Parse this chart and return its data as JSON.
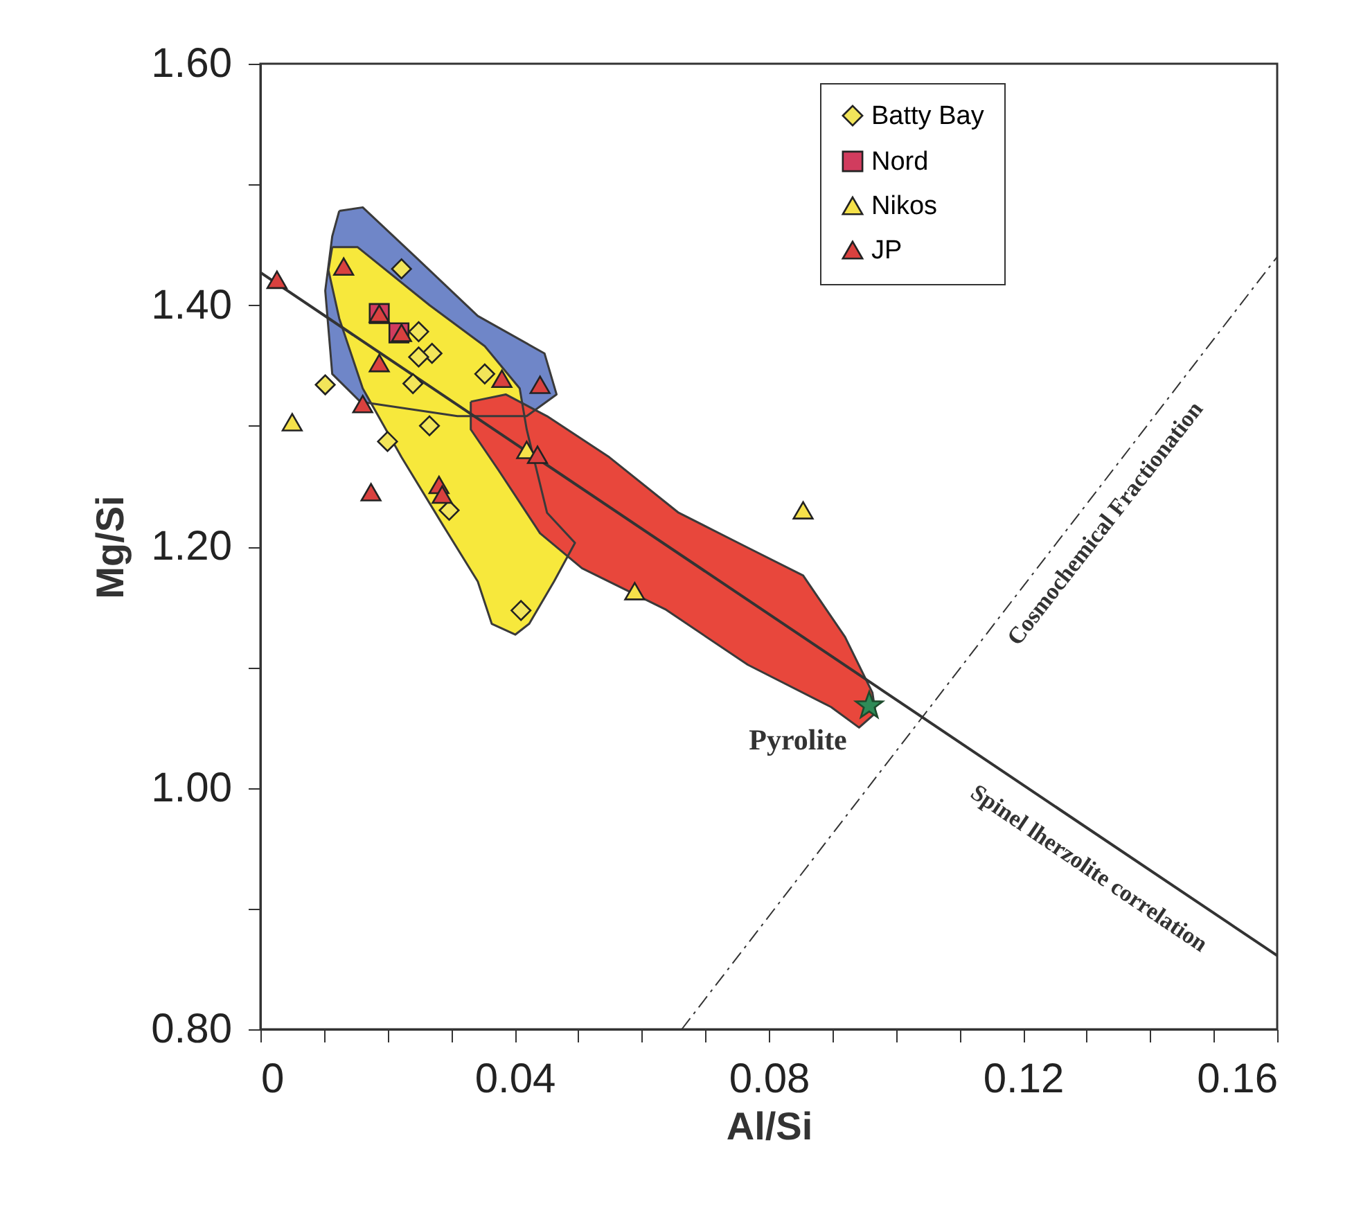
{
  "chart_data": {
    "type": "scatter",
    "xlabel": "Al/Si",
    "ylabel": "Mg/Si",
    "xlim": [
      0,
      0.16
    ],
    "ylim": [
      0.8,
      1.6
    ],
    "xticks": [
      0,
      {
        "value": 0.01,
        "label": null
      },
      {
        "value": 0.02,
        "label": null
      },
      {
        "value": 0.03,
        "label": null
      },
      0.04,
      {
        "value": 0.05,
        "label": null
      },
      {
        "value": 0.06,
        "label": null
      },
      {
        "value": 0.07,
        "label": null
      },
      0.08,
      {
        "value": 0.09,
        "label": null
      },
      {
        "value": 0.1,
        "label": null
      },
      {
        "value": 0.11,
        "label": null
      },
      0.12,
      {
        "value": 0.13,
        "label": null
      },
      {
        "value": 0.14,
        "label": null
      },
      {
        "value": 0.15,
        "label": null
      },
      0.16
    ],
    "yticks": [
      {
        "value": 0.8,
        "label": "0.80"
      },
      {
        "value": 0.9,
        "label": null
      },
      {
        "value": 1.0,
        "label": "1.00"
      },
      {
        "value": 1.1,
        "label": null
      },
      {
        "value": 1.2,
        "label": "1.20"
      },
      {
        "value": 1.3,
        "label": null
      },
      {
        "value": 1.4,
        "label": "1.40"
      },
      {
        "value": 1.5,
        "label": null
      },
      {
        "value": 1.6,
        "label": "1.60"
      }
    ],
    "grid": false,
    "legend": "top right",
    "series": [
      {
        "type": "area",
        "color": "#6f86c8",
        "x": [
          0.0124,
          0.0161,
          0.0244,
          0.0342,
          0.0447,
          0.0466,
          0.0419,
          0.031,
          0.0157,
          0.0113,
          0.0102,
          0.0113
        ],
        "values": [
          1.478,
          1.481,
          1.44,
          1.391,
          1.36,
          1.326,
          1.308,
          1.308,
          1.32,
          1.343,
          1.412,
          1.457
        ]
      },
      {
        "type": "area",
        "color": "#f7e83c",
        "x": [
          0.0113,
          0.0153,
          0.0266,
          0.0353,
          0.0408,
          0.0419,
          0.0451,
          0.0495,
          0.0462,
          0.0423,
          0.0401,
          0.0364,
          0.0342,
          0.0288,
          0.0222,
          0.0161,
          0.0124,
          0.0107
        ],
        "values": [
          1.448,
          1.448,
          1.4,
          1.366,
          1.331,
          1.297,
          1.228,
          1.203,
          1.171,
          1.136,
          1.127,
          1.136,
          1.171,
          1.217,
          1.274,
          1.331,
          1.389,
          1.429
        ]
      },
      {
        "type": "area",
        "color": "#e8473c",
        "x": [
          0.0331,
          0.0386,
          0.0451,
          0.0549,
          0.0658,
          0.0767,
          0.0854,
          0.092,
          0.0963,
          0.0968,
          0.0942,
          0.0898,
          0.0767,
          0.0637,
          0.0506,
          0.044,
          0.0375,
          0.0331
        ],
        "values": [
          1.32,
          1.326,
          1.308,
          1.274,
          1.228,
          1.199,
          1.176,
          1.125,
          1.079,
          1.062,
          1.05,
          1.067,
          1.102,
          1.148,
          1.182,
          1.211,
          1.263,
          1.297
        ]
      },
      {
        "type": "line",
        "color": "#333333",
        "line_style": "solid",
        "x": [
          0,
          0.16
        ],
        "values": [
          1.427,
          0.861
        ]
      },
      {
        "type": "line",
        "color": "#333333",
        "line_style": "dashed",
        "x": [
          0.0663,
          0.16
        ],
        "values": [
          0.8,
          1.44
        ]
      },
      {
        "name": "Batty Bay",
        "type": "scatter",
        "marker": "diamond",
        "color": "#f2e55a",
        "x": [
          0.0222,
          0.0102,
          0.0249,
          0.027,
          0.0249,
          0.024,
          0.0353,
          0.0266,
          0.02,
          0.0297,
          0.041
        ],
        "values": [
          1.43,
          1.334,
          1.378,
          1.36,
          1.357,
          1.335,
          1.343,
          1.3,
          1.287,
          1.23,
          1.147
        ]
      },
      {
        "name": "Nord",
        "type": "scatter",
        "marker": "square",
        "color": "#d13c5e",
        "x": [
          0.0187,
          0.0218
        ],
        "values": [
          1.393,
          1.377
        ]
      },
      {
        "name": "Nikos",
        "type": "scatter",
        "marker": "triangle",
        "color": "#f5e14a",
        "x": [
          0.005,
          0.0419,
          0.0854,
          0.0589
        ],
        "values": [
          1.303,
          1.28,
          1.23,
          1.163
        ]
      },
      {
        "name": "JP",
        "type": "scatter",
        "marker": "triangle",
        "color": "#d9413f",
        "x": [
          0.0026,
          0.0131,
          0.0187,
          0.0222,
          0.0187,
          0.0161,
          0.0174,
          0.0281,
          0.0286,
          0.038,
          0.044,
          0.0436
        ],
        "values": [
          1.421,
          1.432,
          1.393,
          1.377,
          1.352,
          1.318,
          1.245,
          1.251,
          1.243,
          1.339,
          1.334,
          1.276
        ]
      },
      {
        "type": "scatter",
        "marker": "star",
        "color": "#2e8b57",
        "x": [
          0.0958
        ],
        "values": [
          1.068
        ]
      }
    ],
    "annotations": [
      "Pyrolite",
      "Cosmochemical Fractionation",
      "Spinel lherzolite correlation"
    ]
  }
}
